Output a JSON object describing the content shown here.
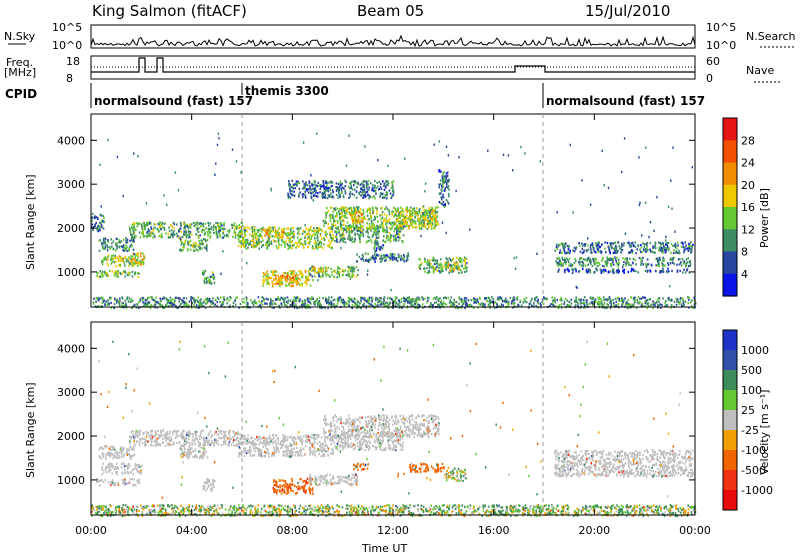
{
  "header": {
    "station": "King Salmon (fitACF)",
    "beam": "Beam 05",
    "date": "15/Jul/2010"
  },
  "strip": {
    "nsky_label": "N.Sky",
    "nsky_ticks": [
      "10^5",
      "10^0"
    ],
    "nsearch_label": "N.Search",
    "nsearch_ticks": [
      "10^5",
      "10^0"
    ],
    "freq_label_1": "Freq.",
    "freq_label_2": "[MHz]",
    "freq_ticks": [
      "18",
      "8"
    ],
    "nave_label": "Nave",
    "nave_ticks": [
      "60",
      "0"
    ],
    "cpid_label": "CPID",
    "cpid_segments": [
      {
        "name": "normalsound (fast) 157",
        "start_h": 0,
        "end_h": 6
      },
      {
        "name": "themis 3300",
        "start_h": 6,
        "end_h": 18
      },
      {
        "name": "normalsound (fast) 157",
        "start_h": 18,
        "end_h": 24
      }
    ]
  },
  "axes": {
    "xlabel": "Time UT",
    "ylabel": "Slant Range [km]",
    "x_ticks": [
      "00:00",
      "04:00",
      "08:00",
      "12:00",
      "16:00",
      "20:00",
      "00:00"
    ],
    "y_ticks": [
      "1000",
      "2000",
      "3000",
      "4000"
    ]
  },
  "colorbars": {
    "power": {
      "label": "Power [dB]",
      "ticks": [
        "4",
        "8",
        "12",
        "16",
        "20",
        "24",
        "28"
      ],
      "colors": [
        "#0a14e6",
        "#2846a0",
        "#3c8c64",
        "#64c832",
        "#f0c800",
        "#f08c00",
        "#f05000",
        "#e61414"
      ]
    },
    "velocity": {
      "label": "Velocity [m s⁻¹]",
      "ticks": [
        "1000",
        "500",
        "100",
        "25",
        "-25",
        "-100",
        "-500",
        "-1000"
      ],
      "colors": [
        "#1e32c8",
        "#3250aa",
        "#3c8c5a",
        "#64c832",
        "#bebebe",
        "#f0a000",
        "#f06400",
        "#f03214",
        "#e60a0a"
      ]
    }
  },
  "chart_data": [
    {
      "type": "heatmap",
      "name_ref": "power",
      "x_range_hours": [
        0,
        24
      ],
      "y_range_km": [
        200,
        4600
      ],
      "cells": [
        {
          "t0": 0.2,
          "t1": 1.9,
          "r0": 900,
          "r1": 1050,
          "v": 14
        },
        {
          "t0": 0.4,
          "t1": 2.0,
          "r0": 1150,
          "r1": 1400,
          "v": 16
        },
        {
          "t0": 0.3,
          "t1": 1.7,
          "r0": 1500,
          "r1": 1800,
          "v": 10
        },
        {
          "t0": 0.0,
          "t1": 0.5,
          "r0": 1950,
          "r1": 2350,
          "v": 8
        },
        {
          "t0": 1.6,
          "t1": 2.1,
          "r0": 1200,
          "r1": 1450,
          "v": 18
        },
        {
          "t0": 1.5,
          "t1": 6.0,
          "r0": 1800,
          "r1": 2150,
          "v": 12
        },
        {
          "t0": 3.5,
          "t1": 4.6,
          "r0": 1500,
          "r1": 1800,
          "v": 12
        },
        {
          "t0": 4.4,
          "t1": 4.9,
          "r0": 750,
          "r1": 1050,
          "v": 12
        },
        {
          "t0": 5.8,
          "t1": 9.6,
          "r0": 1550,
          "r1": 2050,
          "v": 14
        },
        {
          "t0": 6.8,
          "t1": 7.7,
          "r0": 1800,
          "r1": 2000,
          "v": 20
        },
        {
          "t0": 6.8,
          "t1": 8.8,
          "r0": 700,
          "r1": 1050,
          "v": 18
        },
        {
          "t0": 7.3,
          "t1": 8.3,
          "r0": 750,
          "r1": 950,
          "v": 22
        },
        {
          "t0": 8.6,
          "t1": 10.6,
          "r0": 900,
          "r1": 1150,
          "v": 12
        },
        {
          "t0": 8.8,
          "t1": 9.4,
          "r0": 1000,
          "r1": 1150,
          "v": 20
        },
        {
          "t0": 9.6,
          "t1": 12.4,
          "r0": 1700,
          "r1": 2050,
          "v": 12
        },
        {
          "t0": 9.2,
          "t1": 13.8,
          "r0": 2000,
          "r1": 2500,
          "v": 14
        },
        {
          "t0": 10.2,
          "t1": 10.8,
          "r0": 2150,
          "r1": 2400,
          "v": 20
        },
        {
          "t0": 12.2,
          "t1": 13.7,
          "r0": 2050,
          "r1": 2450,
          "v": 16
        },
        {
          "t0": 11.2,
          "t1": 11.6,
          "r0": 1450,
          "r1": 1700,
          "v": 8
        },
        {
          "t0": 13.0,
          "t1": 14.9,
          "r0": 1000,
          "r1": 1350,
          "v": 12
        },
        {
          "t0": 14.0,
          "t1": 14.6,
          "r0": 1050,
          "r1": 1250,
          "v": 18
        },
        {
          "t0": 10.5,
          "t1": 12.6,
          "r0": 1250,
          "r1": 1450,
          "v": 8
        },
        {
          "t0": 7.8,
          "t1": 12.0,
          "r0": 2700,
          "r1": 3100,
          "v": 8
        },
        {
          "t0": 13.8,
          "t1": 14.2,
          "r0": 2500,
          "r1": 3350,
          "v": 8
        },
        {
          "t0": 18.4,
          "t1": 23.9,
          "r0": 1150,
          "r1": 1350,
          "v": 10
        },
        {
          "t0": 18.4,
          "t1": 23.9,
          "r0": 1450,
          "r1": 1700,
          "v": 8
        },
        {
          "t0": 18.5,
          "t1": 23.8,
          "r0": 1000,
          "r1": 1100,
          "v": 6
        },
        {
          "t0": 0.0,
          "t1": 24.0,
          "r0": 200,
          "r1": 450,
          "v": 10
        }
      ]
    },
    {
      "type": "heatmap",
      "name_ref": "velocity",
      "x_range_hours": [
        0,
        24
      ],
      "y_range_km": [
        200,
        4600
      ],
      "cells": [
        {
          "t0": 0.2,
          "t1": 1.9,
          "r0": 900,
          "r1": 1050,
          "v": 0
        },
        {
          "t0": 0.4,
          "t1": 2.0,
          "r0": 1150,
          "r1": 1400,
          "v": 0
        },
        {
          "t0": 0.3,
          "t1": 1.7,
          "r0": 1500,
          "r1": 1800,
          "v": 0
        },
        {
          "t0": 1.5,
          "t1": 6.0,
          "r0": 1800,
          "r1": 2150,
          "v": 0
        },
        {
          "t0": 3.5,
          "t1": 4.6,
          "r0": 1500,
          "r1": 1800,
          "v": 0
        },
        {
          "t0": 4.4,
          "t1": 4.9,
          "r0": 750,
          "r1": 1050,
          "v": 0
        },
        {
          "t0": 5.8,
          "t1": 9.6,
          "r0": 1550,
          "r1": 2050,
          "v": 0
        },
        {
          "t0": 7.2,
          "t1": 8.8,
          "r0": 700,
          "r1": 1050,
          "v": -400
        },
        {
          "t0": 8.6,
          "t1": 10.6,
          "r0": 900,
          "r1": 1150,
          "v": 0
        },
        {
          "t0": 9.6,
          "t1": 12.4,
          "r0": 1700,
          "r1": 2050,
          "v": 0
        },
        {
          "t0": 9.2,
          "t1": 13.8,
          "r0": 2000,
          "r1": 2500,
          "v": 0
        },
        {
          "t0": 10.4,
          "t1": 11.0,
          "r0": 1250,
          "r1": 1400,
          "v": -300
        },
        {
          "t0": 12.6,
          "t1": 14.0,
          "r0": 1200,
          "r1": 1400,
          "v": -300
        },
        {
          "t0": 14.0,
          "t1": 14.9,
          "r0": 1000,
          "r1": 1300,
          "v": 60
        },
        {
          "t0": 18.4,
          "t1": 23.9,
          "r0": 1100,
          "r1": 1700,
          "v": 0
        },
        {
          "t0": 0.0,
          "t1": 24.0,
          "r0": 200,
          "r1": 450,
          "v": 60
        }
      ]
    }
  ]
}
